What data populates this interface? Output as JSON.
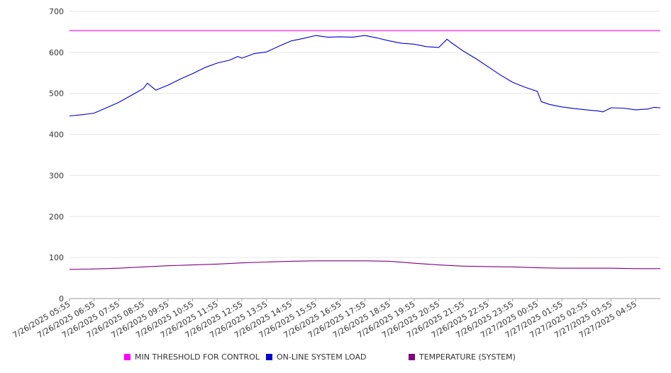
{
  "chart_data": {
    "type": "line",
    "title": "",
    "xlabel": "",
    "ylabel": "",
    "ylim": [
      0,
      700
    ],
    "yticks": [
      0,
      100,
      200,
      300,
      400,
      500,
      600,
      700
    ],
    "grid": true,
    "legend": "bottom",
    "x": [
      "7/26/2025 05:55",
      "7/26/2025 06:55",
      "7/26/2025 07:55",
      "7/26/2025 08:55",
      "7/26/2025 09:55",
      "7/26/2025 10:55",
      "7/26/2025 11:55",
      "7/26/2025 12:55",
      "7/26/2025 13:55",
      "7/26/2025 14:55",
      "7/26/2025 15:55",
      "7/26/2025 16:55",
      "7/26/2025 17:55",
      "7/26/2025 18:55",
      "7/26/2025 19:55",
      "7/26/2025 20:55",
      "7/26/2025 21:55",
      "7/26/2025 22:55",
      "7/26/2025 23:55",
      "7/27/2025 00:55",
      "7/27/2025 01:55",
      "7/27/2025 02:55",
      "7/27/2025 03:55",
      "7/27/2025 04:55"
    ],
    "series": [
      {
        "name": "MIN THRESHOLD FOR CONTROL",
        "color": "#ff00ff",
        "x": [
          "7/26/2025 05:55",
          "7/27/2025 05:55"
        ],
        "values": [
          653,
          653
        ]
      },
      {
        "name": "ON-LINE SYSTEM LOAD",
        "color": "#0000cc",
        "x": [
          "7/26/2025 05:55",
          "7/26/2025 06:25",
          "7/26/2025 06:55",
          "7/26/2025 07:25",
          "7/26/2025 07:55",
          "7/26/2025 08:25",
          "7/26/2025 08:55",
          "7/26/2025 09:05",
          "7/26/2025 09:25",
          "7/26/2025 09:55",
          "7/26/2025 10:25",
          "7/26/2025 10:55",
          "7/26/2025 11:25",
          "7/26/2025 11:55",
          "7/26/2025 12:25",
          "7/26/2025 12:45",
          "7/26/2025 12:55",
          "7/26/2025 13:25",
          "7/26/2025 13:55",
          "7/26/2025 14:25",
          "7/26/2025 14:55",
          "7/26/2025 15:25",
          "7/26/2025 15:55",
          "7/26/2025 16:25",
          "7/26/2025 16:55",
          "7/26/2025 17:25",
          "7/26/2025 17:55",
          "7/26/2025 18:25",
          "7/26/2025 18:55",
          "7/26/2025 19:25",
          "7/26/2025 19:55",
          "7/26/2025 20:25",
          "7/26/2025 20:55",
          "7/26/2025 21:15",
          "7/26/2025 21:25",
          "7/26/2025 21:55",
          "7/26/2025 22:25",
          "7/26/2025 22:55",
          "7/26/2025 23:25",
          "7/26/2025 23:55",
          "7/27/2025 00:25",
          "7/27/2025 00:55",
          "7/27/2025 01:05",
          "7/27/2025 01:25",
          "7/27/2025 01:55",
          "7/27/2025 02:25",
          "7/27/2025 02:55",
          "7/27/2025 03:25",
          "7/27/2025 03:35",
          "7/27/2025 03:55",
          "7/27/2025 04:25",
          "7/27/2025 04:55",
          "7/27/2025 05:25",
          "7/27/2025 05:40",
          "7/27/2025 05:55"
        ],
        "values": [
          445,
          448,
          452,
          465,
          478,
          495,
          512,
          525,
          508,
          520,
          535,
          548,
          563,
          574,
          581,
          590,
          586,
          597,
          601,
          615,
          628,
          634,
          641,
          637,
          638,
          637,
          641,
          635,
          628,
          622,
          620,
          614,
          612,
          632,
          624,
          603,
          585,
          565,
          545,
          527,
          515,
          505,
          480,
          473,
          467,
          463,
          460,
          457,
          455,
          465,
          464,
          460,
          462,
          466,
          465
        ]
      },
      {
        "name": "TEMPERATURE (SYSTEM)",
        "color": "#800080",
        "x": [
          "7/26/2025 05:55",
          "7/26/2025 06:55",
          "7/26/2025 07:55",
          "7/26/2025 08:55",
          "7/26/2025 09:55",
          "7/26/2025 10:55",
          "7/26/2025 11:55",
          "7/26/2025 12:55",
          "7/26/2025 13:55",
          "7/26/2025 14:55",
          "7/26/2025 15:55",
          "7/26/2025 16:55",
          "7/26/2025 17:55",
          "7/26/2025 18:55",
          "7/26/2025 19:55",
          "7/26/2025 20:55",
          "7/26/2025 21:55",
          "7/26/2025 22:55",
          "7/26/2025 23:55",
          "7/27/2025 00:55",
          "7/27/2025 01:55",
          "7/27/2025 02:55",
          "7/27/2025 03:55",
          "7/27/2025 04:55",
          "7/27/2025 05:55"
        ],
        "values": [
          71,
          72,
          74,
          77,
          80,
          82,
          84,
          87,
          89,
          91,
          92,
          92,
          92,
          91,
          86,
          82,
          79,
          78,
          77,
          75,
          74,
          74,
          74,
          73,
          73
        ]
      }
    ]
  }
}
